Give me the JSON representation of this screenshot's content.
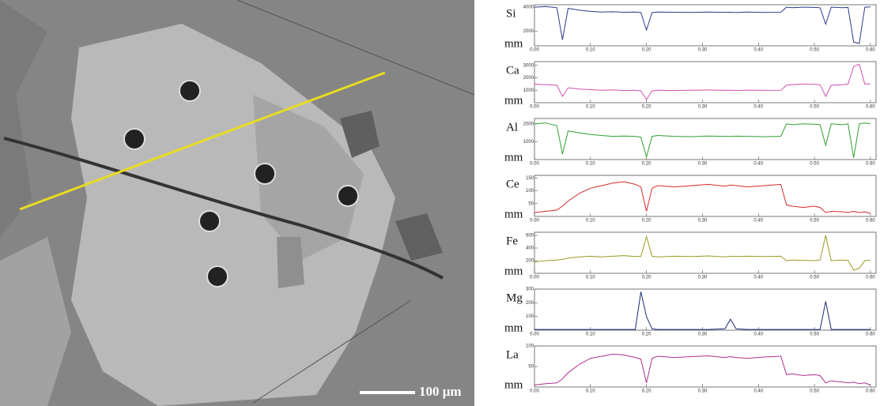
{
  "image": {
    "scale_bar": "100 μm"
  },
  "chart_data": [
    {
      "type": "line",
      "ylabel": "Si",
      "xlabel": "mm",
      "color": "#2b3a8c",
      "x": [
        0,
        0.02,
        0.04,
        0.05,
        0.06,
        0.08,
        0.1,
        0.12,
        0.14,
        0.16,
        0.18,
        0.19,
        0.2,
        0.21,
        0.22,
        0.25,
        0.28,
        0.31,
        0.34,
        0.35,
        0.36,
        0.38,
        0.41,
        0.44,
        0.45,
        0.46,
        0.48,
        0.5,
        0.51,
        0.52,
        0.53,
        0.55,
        0.56,
        0.57,
        0.58,
        0.59,
        0.6
      ],
      "values": [
        4000,
        4050,
        3950,
        1300,
        3900,
        3750,
        3650,
        3600,
        3620,
        3580,
        3600,
        3550,
        2100,
        3550,
        3600,
        3580,
        3560,
        3600,
        3570,
        3580,
        3550,
        3600,
        3560,
        3580,
        4000,
        3950,
        4000,
        3980,
        3950,
        2600,
        4000,
        3950,
        3980,
        1100,
        1000,
        4000,
        4020
      ],
      "xlim": [
        0,
        0.61
      ],
      "ylim": [
        800,
        4200
      ],
      "yticks": [
        2000,
        4000
      ],
      "xticks": [
        {
          "value": 0,
          "label": "0.00"
        },
        {
          "value": 0.1,
          "label": "0.10"
        },
        {
          "value": 0.2,
          "label": "0.20"
        },
        {
          "value": 0.3,
          "label": "0.30"
        },
        {
          "value": 0.4,
          "label": "0.40"
        },
        {
          "value": 0.5,
          "label": "0.50"
        },
        {
          "value": 0.6,
          "label": "0.60"
        }
      ]
    },
    {
      "type": "line",
      "ylabel": "Ca",
      "xlabel": "mm",
      "color": "#d050b0",
      "x": [
        0,
        0.02,
        0.04,
        0.05,
        0.06,
        0.08,
        0.1,
        0.12,
        0.14,
        0.16,
        0.18,
        0.19,
        0.2,
        0.21,
        0.22,
        0.25,
        0.28,
        0.31,
        0.34,
        0.35,
        0.36,
        0.38,
        0.41,
        0.44,
        0.45,
        0.46,
        0.48,
        0.5,
        0.51,
        0.52,
        0.53,
        0.55,
        0.56,
        0.57,
        0.58,
        0.59,
        0.6
      ],
      "values": [
        1500,
        1450,
        1400,
        500,
        1200,
        1100,
        1050,
        1000,
        1020,
        980,
        1000,
        950,
        250,
        950,
        1000,
        980,
        1000,
        1020,
        990,
        1000,
        980,
        1010,
        990,
        1000,
        1400,
        1450,
        1500,
        1480,
        1450,
        500,
        1400,
        1450,
        1500,
        2900,
        3100,
        1500,
        1500
      ],
      "xlim": [
        0,
        0.61
      ],
      "ylim": [
        0,
        3300
      ],
      "yticks": [
        1000,
        2000,
        3000
      ],
      "xticks": [
        {
          "value": 0,
          "label": "0.00"
        },
        {
          "value": 0.1,
          "label": "0.10"
        },
        {
          "value": 0.2,
          "label": "0.20"
        },
        {
          "value": 0.3,
          "label": "0.30"
        },
        {
          "value": 0.4,
          "label": "0.40"
        },
        {
          "value": 0.5,
          "label": "0.50"
        },
        {
          "value": 0.6,
          "label": "0.60"
        }
      ]
    },
    {
      "type": "line",
      "ylabel": "Al",
      "xlabel": "mm",
      "color": "#2fa02f",
      "x": [
        0,
        0.02,
        0.04,
        0.05,
        0.06,
        0.08,
        0.1,
        0.12,
        0.14,
        0.16,
        0.18,
        0.19,
        0.2,
        0.21,
        0.22,
        0.25,
        0.28,
        0.31,
        0.34,
        0.35,
        0.36,
        0.38,
        0.41,
        0.44,
        0.45,
        0.46,
        0.48,
        0.5,
        0.51,
        0.52,
        0.53,
        0.55,
        0.56,
        0.57,
        0.58,
        0.59,
        0.6
      ],
      "values": [
        2000,
        2050,
        1900,
        300,
        1600,
        1500,
        1400,
        1350,
        1300,
        1320,
        1300,
        1250,
        150,
        1300,
        1350,
        1300,
        1280,
        1320,
        1300,
        1290,
        1310,
        1300,
        1280,
        1300,
        2000,
        1950,
        2000,
        1980,
        1950,
        800,
        2000,
        1950,
        2000,
        100,
        2000,
        2050,
        2000
      ],
      "xlim": [
        0,
        0.61
      ],
      "ylim": [
        0,
        2300
      ],
      "yticks": [
        1000,
        2000
      ],
      "xticks": [
        {
          "value": 0,
          "label": "0.00"
        },
        {
          "value": 0.1,
          "label": "0.10"
        },
        {
          "value": 0.2,
          "label": "0.20"
        },
        {
          "value": 0.3,
          "label": "0.30"
        },
        {
          "value": 0.4,
          "label": "0.40"
        },
        {
          "value": 0.5,
          "label": "0.50"
        },
        {
          "value": 0.6,
          "label": "0.60"
        }
      ]
    },
    {
      "type": "line",
      "ylabel": "Ce",
      "xlabel": "mm",
      "color": "#d42a2a",
      "x": [
        0,
        0.02,
        0.04,
        0.05,
        0.06,
        0.08,
        0.1,
        0.12,
        0.14,
        0.16,
        0.18,
        0.19,
        0.2,
        0.21,
        0.22,
        0.25,
        0.28,
        0.31,
        0.34,
        0.35,
        0.36,
        0.38,
        0.41,
        0.44,
        0.45,
        0.46,
        0.48,
        0.5,
        0.51,
        0.52,
        0.53,
        0.55,
        0.56,
        0.57,
        0.58,
        0.59,
        0.6
      ],
      "values": [
        15,
        20,
        25,
        40,
        60,
        90,
        110,
        120,
        130,
        135,
        125,
        115,
        20,
        110,
        120,
        115,
        120,
        125,
        118,
        122,
        120,
        115,
        120,
        125,
        45,
        40,
        35,
        40,
        35,
        15,
        20,
        18,
        15,
        20,
        15,
        18,
        12
      ],
      "xlim": [
        0,
        0.61
      ],
      "ylim": [
        0,
        160
      ],
      "yticks": [
        50,
        100,
        150
      ],
      "xticks": [
        {
          "value": 0,
          "label": "0.00"
        },
        {
          "value": 0.1,
          "label": "0.10"
        },
        {
          "value": 0.2,
          "label": "0.20"
        },
        {
          "value": 0.3,
          "label": "0.30"
        },
        {
          "value": 0.4,
          "label": "0.40"
        },
        {
          "value": 0.5,
          "label": "0.50"
        },
        {
          "value": 0.6,
          "label": "0.60"
        }
      ]
    },
    {
      "type": "line",
      "ylabel": "Fe",
      "xlabel": "mm",
      "color": "#9a9a20",
      "x": [
        0,
        0.02,
        0.04,
        0.05,
        0.06,
        0.08,
        0.1,
        0.12,
        0.14,
        0.16,
        0.18,
        0.19,
        0.2,
        0.21,
        0.22,
        0.25,
        0.28,
        0.31,
        0.34,
        0.35,
        0.36,
        0.38,
        0.41,
        0.44,
        0.45,
        0.46,
        0.48,
        0.5,
        0.51,
        0.52,
        0.53,
        0.55,
        0.56,
        0.57,
        0.58,
        0.59,
        0.6
      ],
      "values": [
        180,
        200,
        210,
        220,
        240,
        260,
        270,
        260,
        270,
        280,
        265,
        270,
        580,
        270,
        260,
        270,
        265,
        275,
        260,
        270,
        265,
        270,
        265,
        270,
        200,
        210,
        205,
        200,
        210,
        600,
        200,
        210,
        205,
        50,
        80,
        200,
        210
      ],
      "xlim": [
        0,
        0.61
      ],
      "ylim": [
        0,
        650
      ],
      "yticks": [
        200,
        400,
        600
      ],
      "xticks": [
        {
          "value": 0,
          "label": "0.00"
        },
        {
          "value": 0.1,
          "label": "0.10"
        },
        {
          "value": 0.2,
          "label": "0.20"
        },
        {
          "value": 0.3,
          "label": "0.30"
        },
        {
          "value": 0.4,
          "label": "0.40"
        },
        {
          "value": 0.5,
          "label": "0.50"
        },
        {
          "value": 0.6,
          "label": "0.60"
        }
      ]
    },
    {
      "type": "line",
      "ylabel": "Mg",
      "xlabel": "mm",
      "color": "#1a2a7a",
      "x": [
        0,
        0.02,
        0.04,
        0.05,
        0.06,
        0.08,
        0.1,
        0.12,
        0.14,
        0.16,
        0.18,
        0.19,
        0.2,
        0.21,
        0.22,
        0.25,
        0.28,
        0.31,
        0.34,
        0.35,
        0.36,
        0.38,
        0.41,
        0.44,
        0.45,
        0.46,
        0.48,
        0.5,
        0.51,
        0.52,
        0.53,
        0.55,
        0.56,
        0.57,
        0.58,
        0.59,
        0.6
      ],
      "values": [
        5,
        5,
        5,
        5,
        5,
        5,
        5,
        5,
        5,
        5,
        5,
        280,
        100,
        10,
        5,
        5,
        5,
        5,
        10,
        80,
        10,
        5,
        5,
        5,
        5,
        5,
        5,
        5,
        5,
        210,
        5,
        5,
        5,
        5,
        5,
        5,
        5
      ],
      "xlim": [
        0,
        0.61
      ],
      "ylim": [
        0,
        300
      ],
      "yticks": [
        100,
        200,
        300
      ],
      "xticks": [
        {
          "value": 0,
          "label": "0.00"
        },
        {
          "value": 0.1,
          "label": "0.10"
        },
        {
          "value": 0.2,
          "label": "0.20"
        },
        {
          "value": 0.3,
          "label": "0.30"
        },
        {
          "value": 0.4,
          "label": "0.40"
        },
        {
          "value": 0.5,
          "label": "0.50"
        },
        {
          "value": 0.6,
          "label": "0.60"
        }
      ]
    },
    {
      "type": "line",
      "ylabel": "La",
      "xlabel": "mm",
      "color": "#b0308f",
      "x": [
        0,
        0.02,
        0.04,
        0.05,
        0.06,
        0.08,
        0.1,
        0.12,
        0.14,
        0.16,
        0.18,
        0.19,
        0.2,
        0.21,
        0.22,
        0.25,
        0.28,
        0.31,
        0.34,
        0.35,
        0.36,
        0.38,
        0.41,
        0.44,
        0.45,
        0.46,
        0.48,
        0.5,
        0.51,
        0.52,
        0.53,
        0.55,
        0.56,
        0.57,
        0.58,
        0.59,
        0.6
      ],
      "values": [
        5,
        8,
        10,
        20,
        35,
        55,
        70,
        75,
        80,
        78,
        72,
        68,
        10,
        70,
        75,
        72,
        74,
        76,
        72,
        74,
        72,
        70,
        73,
        75,
        30,
        32,
        28,
        30,
        28,
        10,
        15,
        12,
        10,
        12,
        8,
        10,
        5
      ],
      "xlim": [
        0,
        0.61
      ],
      "ylim": [
        0,
        100
      ],
      "yticks": [
        50,
        100
      ],
      "xticks": [
        {
          "value": 0,
          "label": "0.00"
        },
        {
          "value": 0.1,
          "label": "0.10"
        },
        {
          "value": 0.2,
          "label": "0.20"
        },
        {
          "value": 0.3,
          "label": "0.30"
        },
        {
          "value": 0.4,
          "label": "0.40"
        },
        {
          "value": 0.5,
          "label": "0.50"
        },
        {
          "value": 0.6,
          "label": "0.60"
        }
      ]
    }
  ]
}
